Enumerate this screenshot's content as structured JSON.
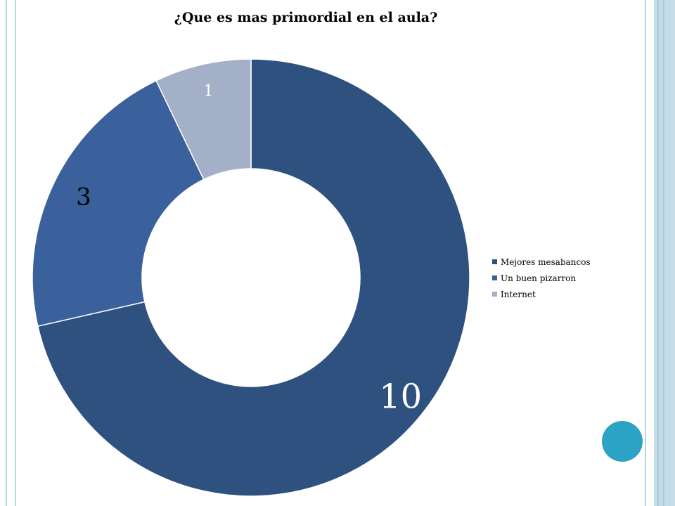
{
  "slide": {
    "accent_color": "#2aa3c4",
    "frame_color": "#b5d6e3"
  },
  "chart_data": {
    "type": "pie",
    "style": "donut",
    "title": "¿Que es mas primordial en el aula?",
    "categories": [
      "Mejores mesabancos",
      "Un buen pizarron",
      "Internet"
    ],
    "values": [
      10,
      3,
      1
    ],
    "colors": [
      "#2f517f",
      "#3a619b",
      "#a4afc8"
    ],
    "data_label_colors": [
      "#ffffff",
      "#000000",
      "#ffffff"
    ],
    "legend_position": "right"
  }
}
